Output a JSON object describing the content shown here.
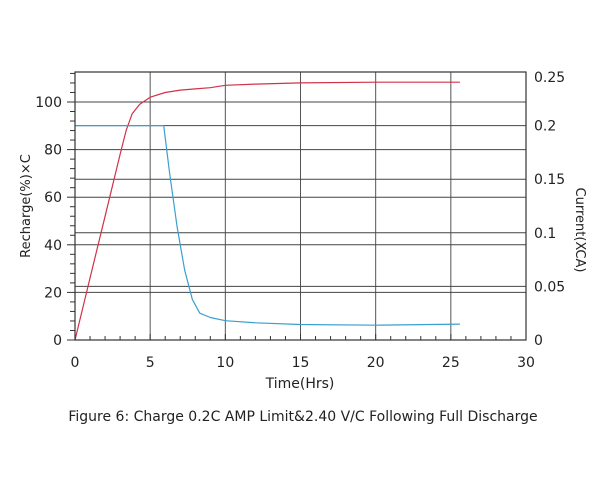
{
  "chart_data": {
    "type": "line",
    "title": "Figure 6: Charge 0.2C AMP Limit&2.40 V/C Following Full Discharge",
    "xlabel": "Time(Hrs)",
    "ylabel": "Recharge(%)×C",
    "y2label": "Current(XCA)",
    "xlim": [
      0,
      30
    ],
    "ylim": [
      0,
      112.6
    ],
    "y2lim": [
      0,
      0.25
    ],
    "xticks": [
      "0",
      "5",
      "10",
      "15",
      "20",
      "25",
      "30"
    ],
    "yticks": [
      "0",
      "20",
      "40",
      "60",
      "80",
      "100"
    ],
    "y2ticks": [
      "0",
      "0.05",
      "0.1",
      "0.15",
      "0.2",
      "0.25"
    ],
    "grid": true,
    "series": [
      {
        "name": "Recharge",
        "axis": "left",
        "color": "#d0324a",
        "x": [
          0,
          1,
          2,
          3,
          3.4,
          3.8,
          4.3,
          5,
          6,
          7,
          8,
          9,
          10,
          12,
          15,
          20,
          25.6
        ],
        "y": [
          0,
          26,
          52,
          78,
          88,
          95,
          99,
          102,
          104,
          105,
          105.5,
          106,
          107,
          107.5,
          108,
          108.3,
          108.3
        ]
      },
      {
        "name": "Current",
        "axis": "right",
        "color": "#3a9fd0",
        "x": [
          0,
          5.9,
          6.3,
          6.8,
          7.3,
          7.8,
          8.3,
          9,
          10,
          12,
          15,
          20,
          25.6
        ],
        "y": [
          0.2,
          0.2,
          0.155,
          0.105,
          0.065,
          0.038,
          0.025,
          0.021,
          0.018,
          0.016,
          0.0145,
          0.0138,
          0.0148
        ]
      }
    ]
  }
}
